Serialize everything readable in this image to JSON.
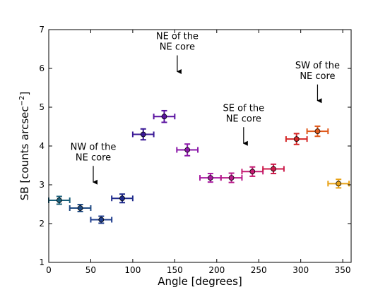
{
  "chart_data": {
    "type": "scatter",
    "xlabel": "Angle [degrees]",
    "ylabel": {
      "prefix": "SB [counts arcsec",
      "superscript": "−2",
      "suffix": "]"
    },
    "xlim": [
      0,
      360
    ],
    "ylim": [
      1,
      7
    ],
    "xticks": [
      0,
      50,
      100,
      150,
      200,
      250,
      300,
      350
    ],
    "yticks": [
      1,
      2,
      3,
      4,
      5,
      6,
      7
    ],
    "grid": false,
    "points": [
      {
        "x": 12.5,
        "y": 2.6,
        "xerr": 12.5,
        "yerr": 0.1,
        "color": "#1a5f7a"
      },
      {
        "x": 37.5,
        "y": 2.4,
        "xerr": 12.5,
        "yerr": 0.09,
        "color": "#1f4a82"
      },
      {
        "x": 62.5,
        "y": 2.1,
        "xerr": 12.5,
        "yerr": 0.09,
        "color": "#1e3c8c"
      },
      {
        "x": 87.5,
        "y": 2.65,
        "xerr": 12.5,
        "yerr": 0.11,
        "color": "#1e2a8c"
      },
      {
        "x": 112.5,
        "y": 4.3,
        "xerr": 12.5,
        "yerr": 0.14,
        "color": "#3a1896"
      },
      {
        "x": 137.5,
        "y": 4.76,
        "xerr": 12.5,
        "yerr": 0.15,
        "color": "#5a12a0"
      },
      {
        "x": 165.0,
        "y": 3.9,
        "xerr": 12.5,
        "yerr": 0.15,
        "color": "#8a17a8"
      },
      {
        "x": 192.5,
        "y": 3.18,
        "xerr": 12.5,
        "yerr": 0.11,
        "color": "#a81aa0"
      },
      {
        "x": 217.5,
        "y": 3.18,
        "xerr": 12.5,
        "yerr": 0.12,
        "color": "#b81b8a"
      },
      {
        "x": 242.5,
        "y": 3.34,
        "xerr": 12.5,
        "yerr": 0.12,
        "color": "#c41b72"
      },
      {
        "x": 267.5,
        "y": 3.41,
        "xerr": 12.5,
        "yerr": 0.12,
        "color": "#cc1a4a"
      },
      {
        "x": 295.0,
        "y": 4.18,
        "xerr": 12.5,
        "yerr": 0.14,
        "color": "#d42626"
      },
      {
        "x": 320.0,
        "y": 4.38,
        "xerr": 12.5,
        "yerr": 0.13,
        "color": "#e05a1c"
      },
      {
        "x": 345.0,
        "y": 3.03,
        "xerr": 12.5,
        "yerr": 0.11,
        "color": "#e8a217"
      }
    ],
    "annotations": [
      {
        "lines": [
          "NW of the",
          "NE core"
        ],
        "x": 53,
        "y": 3.05
      },
      {
        "lines": [
          "NE of the",
          "NE core"
        ],
        "x": 153,
        "y": 5.9
      },
      {
        "lines": [
          "SE of the",
          "NE core"
        ],
        "x": 232,
        "y": 4.05
      },
      {
        "lines": [
          "SW of the",
          "NE core"
        ],
        "x": 320,
        "y": 5.15
      }
    ]
  }
}
